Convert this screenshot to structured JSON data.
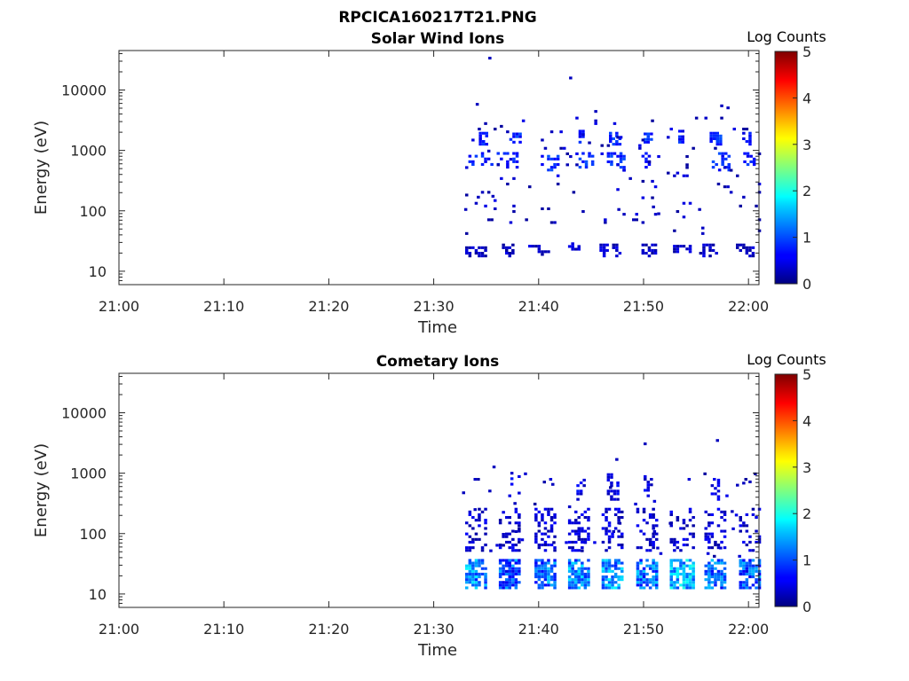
{
  "figure_title": "RPCICA160217T21.PNG",
  "chart_data": [
    {
      "type": "heatmap",
      "title": "Solar Wind Ions",
      "xlabel": "Time",
      "ylabel": "Energy (eV)",
      "x_ticks": [
        "21:00",
        "21:10",
        "21:20",
        "21:30",
        "21:40",
        "21:50",
        "22:00"
      ],
      "x_range_minutes": [
        0,
        61
      ],
      "y_scale": "log",
      "y_ticks": [
        "10",
        "100",
        "1000",
        "10000"
      ],
      "y_range": [
        6,
        45000
      ],
      "colorbar": {
        "label": "Log Counts",
        "range": [
          0,
          5
        ],
        "ticks": [
          "0",
          "1",
          "2",
          "3",
          "4",
          "5"
        ],
        "colormap": "jet"
      },
      "grid": false,
      "bursts_start_minute": [
        33.3,
        36.8,
        40.6,
        43.8,
        46.7,
        50.0,
        53.5,
        56.3,
        59.6
      ],
      "features": [
        {
          "t": [
            33.0,
            35.0
          ],
          "e": [
            17,
            25
          ],
          "v": 0.3,
          "d": 0.55
        },
        {
          "t": [
            36.5,
            37.5
          ],
          "e": [
            17,
            27
          ],
          "v": 0.3,
          "d": 0.5
        },
        {
          "t": [
            39.0,
            40.8
          ],
          "e": [
            18,
            26
          ],
          "v": 0.3,
          "d": 0.35
        },
        {
          "t": [
            42.5,
            43.8
          ],
          "e": [
            22,
            30
          ],
          "v": 0.3,
          "d": 0.3
        },
        {
          "t": [
            45.8,
            47.8
          ],
          "e": [
            17,
            26
          ],
          "v": 0.35,
          "d": 0.5
        },
        {
          "t": [
            49.5,
            51.2
          ],
          "e": [
            17,
            28
          ],
          "v": 0.3,
          "d": 0.45
        },
        {
          "t": [
            52.8,
            54.5
          ],
          "e": [
            20,
            27
          ],
          "v": 0.3,
          "d": 0.45
        },
        {
          "t": [
            55.3,
            57.0
          ],
          "e": [
            17,
            26
          ],
          "v": 0.3,
          "d": 0.35
        },
        {
          "t": [
            58.8,
            60.5
          ],
          "e": [
            17,
            27
          ],
          "v": 0.3,
          "d": 0.4
        },
        {
          "t": [
            33.3,
            38.0
          ],
          "e": [
            500,
            900
          ],
          "v": 0.7,
          "d": 0.25
        },
        {
          "t": [
            40.2,
            41.8
          ],
          "e": [
            450,
            800
          ],
          "v": 0.8,
          "d": 0.45
        },
        {
          "t": [
            43.8,
            45.0
          ],
          "e": [
            500,
            900
          ],
          "v": 0.8,
          "d": 0.45
        },
        {
          "t": [
            46.5,
            48.2
          ],
          "e": [
            450,
            900
          ],
          "v": 0.8,
          "d": 0.45
        },
        {
          "t": [
            49.8,
            50.8
          ],
          "e": [
            500,
            900
          ],
          "v": 0.7,
          "d": 0.35
        },
        {
          "t": [
            56.5,
            58.0
          ],
          "e": [
            450,
            850
          ],
          "v": 0.8,
          "d": 0.4
        },
        {
          "t": [
            59.5,
            60.5
          ],
          "e": [
            450,
            850
          ],
          "v": 0.7,
          "d": 0.35
        },
        {
          "t": [
            34.3,
            35.0
          ],
          "e": [
            1200,
            2000
          ],
          "v": 0.7,
          "d": 0.6
        },
        {
          "t": [
            37.2,
            38.2
          ],
          "e": [
            1300,
            1900
          ],
          "v": 0.8,
          "d": 0.6
        },
        {
          "t": [
            43.8,
            44.3
          ],
          "e": [
            1300,
            2000
          ],
          "v": 0.7,
          "d": 0.5
        },
        {
          "t": [
            46.7,
            47.8
          ],
          "e": [
            1200,
            2000
          ],
          "v": 0.8,
          "d": 0.6
        },
        {
          "t": [
            50.0,
            50.8
          ],
          "e": [
            1300,
            1900
          ],
          "v": 0.8,
          "d": 0.6
        },
        {
          "t": [
            53.3,
            53.8
          ],
          "e": [
            1300,
            2000
          ],
          "v": 0.7,
          "d": 0.6
        },
        {
          "t": [
            56.3,
            57.2
          ],
          "e": [
            1200,
            2000
          ],
          "v": 0.8,
          "d": 0.6
        },
        {
          "t": [
            59.4,
            60.0
          ],
          "e": [
            1200,
            1900
          ],
          "v": 0.7,
          "d": 0.6
        },
        {
          "t": [
            33.0,
            61.0
          ],
          "e": [
            40,
            3500
          ],
          "v": 0.3,
          "d": 0.03
        }
      ],
      "specks": [
        [
          35.2,
          32000
        ],
        [
          42.9,
          15000
        ],
        [
          34.0,
          5500
        ],
        [
          45.3,
          4200
        ],
        [
          57.3,
          5200
        ],
        [
          57.9,
          4800
        ],
        [
          34.1,
          160
        ],
        [
          35.5,
          165
        ],
        [
          32.9,
          100
        ],
        [
          47.5,
          100
        ],
        [
          50.8,
          110
        ],
        [
          51.3,
          85
        ],
        [
          55.2,
          100
        ],
        [
          59.4,
          160
        ]
      ]
    },
    {
      "type": "heatmap",
      "title": "Cometary Ions",
      "xlabel": "Time",
      "ylabel": "Energy (eV)",
      "x_ticks": [
        "21:00",
        "21:10",
        "21:20",
        "21:30",
        "21:40",
        "21:50",
        "22:00"
      ],
      "x_range_minutes": [
        0,
        61
      ],
      "y_scale": "log",
      "y_ticks": [
        "10",
        "100",
        "1000",
        "10000"
      ],
      "y_range": [
        6,
        45000
      ],
      "colorbar": {
        "label": "Log Counts",
        "range": [
          0,
          5
        ],
        "ticks": [
          "0",
          "1",
          "2",
          "3",
          "4",
          "5"
        ],
        "colormap": "jet"
      },
      "grid": false,
      "bursts_start_minute": [
        33.3,
        36.8,
        40.2,
        43.4,
        46.7,
        49.8,
        53.2,
        56.3,
        59.6
      ],
      "features": [
        {
          "t": [
            33.0,
            35.0
          ],
          "e": [
            12,
            35
          ],
          "v": 1.3,
          "d": 0.7
        },
        {
          "t": [
            36.2,
            38.2
          ],
          "e": [
            12,
            35
          ],
          "v": 1.0,
          "d": 0.7
        },
        {
          "t": [
            39.6,
            41.6
          ],
          "e": [
            12,
            35
          ],
          "v": 1.1,
          "d": 0.75
        },
        {
          "t": [
            42.8,
            44.8
          ],
          "e": [
            12,
            35
          ],
          "v": 1.3,
          "d": 0.75
        },
        {
          "t": [
            46.0,
            48.0
          ],
          "e": [
            12,
            35
          ],
          "v": 1.3,
          "d": 0.75
        },
        {
          "t": [
            49.3,
            51.3
          ],
          "e": [
            12,
            35
          ],
          "v": 1.1,
          "d": 0.75
        },
        {
          "t": [
            52.5,
            54.6
          ],
          "e": [
            12,
            35
          ],
          "v": 1.5,
          "d": 0.75
        },
        {
          "t": [
            55.8,
            57.8
          ],
          "e": [
            12,
            35
          ],
          "v": 1.1,
          "d": 0.75
        },
        {
          "t": [
            59.1,
            60.9
          ],
          "e": [
            12,
            35
          ],
          "v": 1.0,
          "d": 0.7
        },
        {
          "t": [
            33.0,
            35.0
          ],
          "e": [
            50,
            250
          ],
          "v": 0.4,
          "d": 0.3
        },
        {
          "t": [
            36.2,
            38.2
          ],
          "e": [
            50,
            250
          ],
          "v": 0.4,
          "d": 0.3
        },
        {
          "t": [
            39.6,
            41.6
          ],
          "e": [
            50,
            250
          ],
          "v": 0.4,
          "d": 0.3
        },
        {
          "t": [
            42.8,
            44.8
          ],
          "e": [
            50,
            250
          ],
          "v": 0.4,
          "d": 0.3
        },
        {
          "t": [
            46.0,
            48.0
          ],
          "e": [
            50,
            250
          ],
          "v": 0.4,
          "d": 0.3
        },
        {
          "t": [
            49.3,
            51.3
          ],
          "e": [
            50,
            250
          ],
          "v": 0.4,
          "d": 0.3
        },
        {
          "t": [
            52.5,
            54.6
          ],
          "e": [
            50,
            250
          ],
          "v": 0.4,
          "d": 0.3
        },
        {
          "t": [
            55.8,
            57.8
          ],
          "e": [
            50,
            250
          ],
          "v": 0.4,
          "d": 0.3
        },
        {
          "t": [
            59.1,
            60.9
          ],
          "e": [
            50,
            250
          ],
          "v": 0.4,
          "d": 0.25
        },
        {
          "t": [
            37.3,
            37.7
          ],
          "e": [
            300,
            1000
          ],
          "v": 0.5,
          "d": 0.3
        },
        {
          "t": [
            43.6,
            44.2
          ],
          "e": [
            350,
            800
          ],
          "v": 0.5,
          "d": 0.4
        },
        {
          "t": [
            46.5,
            47.6
          ],
          "e": [
            350,
            900
          ],
          "v": 0.5,
          "d": 0.4
        },
        {
          "t": [
            50.0,
            50.6
          ],
          "e": [
            400,
            850
          ],
          "v": 0.5,
          "d": 0.4
        },
        {
          "t": [
            56.4,
            57.2
          ],
          "e": [
            350,
            900
          ],
          "v": 0.5,
          "d": 0.45
        },
        {
          "t": [
            32.0,
            61.0
          ],
          "e": [
            40,
            1000
          ],
          "v": 0.3,
          "d": 0.02
        }
      ],
      "specks": [
        [
          50.0,
          2900
        ],
        [
          56.9,
          3300
        ],
        [
          35.6,
          1200
        ],
        [
          47.3,
          1600
        ],
        [
          32.7,
          450
        ],
        [
          35.2,
          480
        ],
        [
          41.2,
          620
        ],
        [
          58.8,
          600
        ],
        [
          59.4,
          650
        ],
        [
          60.0,
          680
        ],
        [
          58.3,
          220
        ]
      ]
    }
  ]
}
